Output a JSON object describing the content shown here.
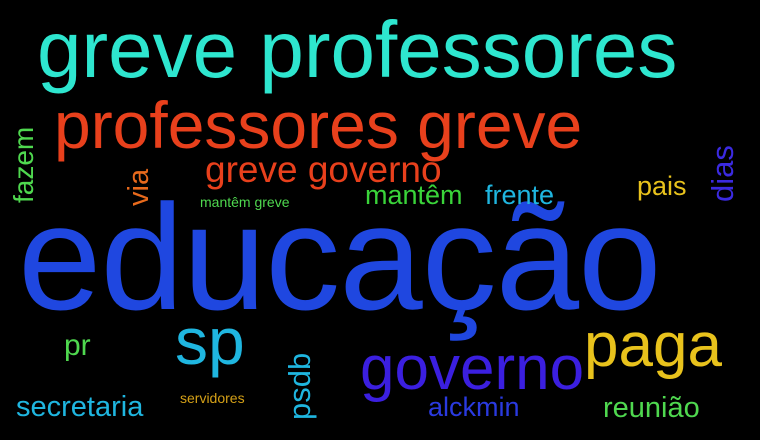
{
  "background": "#000000",
  "words": [
    {
      "key": "educacao",
      "text": "educação",
      "color": "#1f47e0"
    },
    {
      "key": "greve_professores",
      "text": "greve professores",
      "color": "#2ee6cf"
    },
    {
      "key": "professores_greve",
      "text": "professores greve",
      "color": "#e8401c"
    },
    {
      "key": "greve_governo",
      "text": "greve governo",
      "color": "#e8401c"
    },
    {
      "key": "governo",
      "text": "governo",
      "color": "#3b1fe0"
    },
    {
      "key": "paga",
      "text": "paga",
      "color": "#e8c21c"
    },
    {
      "key": "sp",
      "text": "sp",
      "color": "#1fb6e0"
    },
    {
      "key": "mantem",
      "text": "mantêm",
      "color": "#3ad43a"
    },
    {
      "key": "frente",
      "text": "frente",
      "color": "#1fb6e0"
    },
    {
      "key": "pais",
      "text": "pais",
      "color": "#e8c21c"
    },
    {
      "key": "secretaria",
      "text": "secretaria",
      "color": "#1fb6e0"
    },
    {
      "key": "alckmin",
      "text": "alckmin",
      "color": "#2a3ae0"
    },
    {
      "key": "reuniao",
      "text": "reunião",
      "color": "#4fd84f"
    },
    {
      "key": "pr",
      "text": "pr",
      "color": "#4fd84f"
    },
    {
      "key": "mantem_greve",
      "text": "mantêm greve",
      "color": "#4fd84f"
    },
    {
      "key": "servidores",
      "text": "servidores",
      "color": "#d4a017"
    },
    {
      "key": "fazem",
      "text": "fazem",
      "color": "#4fd84f"
    },
    {
      "key": "via",
      "text": "via",
      "color": "#e86a1c"
    },
    {
      "key": "dias",
      "text": "dias",
      "color": "#3b2ae0"
    },
    {
      "key": "psdb",
      "text": "psdb",
      "color": "#1fb6e0"
    }
  ]
}
